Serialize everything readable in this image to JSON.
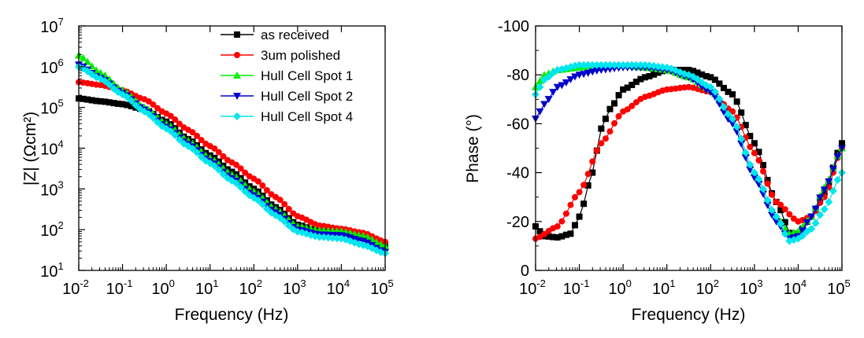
{
  "chart_data": [
    {
      "type": "scatter",
      "id": "impedance",
      "xlabel": "Frequency (Hz)",
      "ylabel": "|Z| (Ωcm²)",
      "xscale": "log",
      "yscale": "log",
      "xlim_exp": [
        -2,
        5
      ],
      "ylim_exp": [
        1,
        7
      ],
      "legend_position": "top-right",
      "series": [
        {
          "name": "as received",
          "color": "#000000",
          "marker": "square",
          "knots": [
            [
              -2,
              5.22
            ],
            [
              -1.5,
              5.15
            ],
            [
              -1,
              5.08
            ],
            [
              -0.5,
              4.95
            ],
            [
              0,
              4.65
            ],
            [
              0.5,
              4.22
            ],
            [
              1,
              3.82
            ],
            [
              1.5,
              3.42
            ],
            [
              2,
              3.0
            ],
            [
              2.5,
              2.55
            ],
            [
              3,
              2.12
            ],
            [
              3.5,
              1.95
            ],
            [
              4,
              1.93
            ],
            [
              4.5,
              1.85
            ],
            [
              5,
              1.62
            ]
          ]
        },
        {
          "name": "3um polished",
          "color": "#ff0000",
          "marker": "circle",
          "knots": [
            [
              -2,
              5.62
            ],
            [
              -1.5,
              5.55
            ],
            [
              -1,
              5.42
            ],
            [
              -0.5,
              5.2
            ],
            [
              0,
              4.85
            ],
            [
              0.5,
              4.45
            ],
            [
              1,
              4.05
            ],
            [
              1.5,
              3.65
            ],
            [
              2,
              3.25
            ],
            [
              2.5,
              2.8
            ],
            [
              3,
              2.33
            ],
            [
              3.5,
              2.1
            ],
            [
              4,
              2.02
            ],
            [
              4.5,
              1.92
            ],
            [
              5,
              1.7
            ]
          ]
        },
        {
          "name": "Hull Cell Spot 1",
          "color": "#00ee00",
          "marker": "triangle-up",
          "knots": [
            [
              -2,
              6.28
            ],
            [
              -1.5,
              5.85
            ],
            [
              -1,
              5.42
            ],
            [
              -0.5,
              5.0
            ],
            [
              0,
              4.6
            ],
            [
              0.5,
              4.18
            ],
            [
              1,
              3.76
            ],
            [
              1.5,
              3.35
            ],
            [
              2,
              2.94
            ],
            [
              2.5,
              2.5
            ],
            [
              3,
              2.08
            ],
            [
              3.5,
              1.98
            ],
            [
              4,
              1.96
            ],
            [
              4.5,
              1.85
            ],
            [
              5,
              1.6
            ]
          ]
        },
        {
          "name": "Hull Cell Spot 2",
          "color": "#0000cc",
          "marker": "triangle-down",
          "knots": [
            [
              -2,
              6.05
            ],
            [
              -1.5,
              5.72
            ],
            [
              -1,
              5.35
            ],
            [
              -0.5,
              4.94
            ],
            [
              0,
              4.52
            ],
            [
              0.5,
              4.1
            ],
            [
              1,
              3.68
            ],
            [
              1.5,
              3.26
            ],
            [
              2,
              2.84
            ],
            [
              2.5,
              2.42
            ],
            [
              3,
              2.0
            ],
            [
              3.5,
              1.88
            ],
            [
              4,
              1.86
            ],
            [
              4.5,
              1.72
            ],
            [
              5,
              1.45
            ]
          ]
        },
        {
          "name": "Hull Cell Spot 4",
          "color": "#00e5ee",
          "marker": "diamond",
          "knots": [
            [
              -2,
              6.0
            ],
            [
              -1.5,
              5.7
            ],
            [
              -1,
              5.32
            ],
            [
              -0.5,
              4.9
            ],
            [
              0,
              4.48
            ],
            [
              0.5,
              4.05
            ],
            [
              1,
              3.63
            ],
            [
              1.5,
              3.2
            ],
            [
              2,
              2.78
            ],
            [
              2.5,
              2.35
            ],
            [
              3,
              1.95
            ],
            [
              3.5,
              1.82
            ],
            [
              4,
              1.78
            ],
            [
              4.5,
              1.62
            ],
            [
              5,
              1.42
            ]
          ]
        }
      ]
    },
    {
      "type": "scatter",
      "id": "phase",
      "xlabel": "Frequency (Hz)",
      "ylabel": "Phase (°)",
      "xscale": "log",
      "xlim_exp": [
        -2,
        5
      ],
      "ylim": [
        0,
        -100
      ],
      "yticks": [
        "0",
        "-20",
        "-40",
        "-60",
        "-80",
        "-100"
      ],
      "series": [
        {
          "name": "as received",
          "color": "#000000",
          "marker": "square",
          "knots": [
            [
              -2,
              -18
            ],
            [
              -1.8,
              -14
            ],
            [
              -1.5,
              -13.5
            ],
            [
              -1.2,
              -15
            ],
            [
              -1,
              -22
            ],
            [
              -0.7,
              -40
            ],
            [
              -0.5,
              -58
            ],
            [
              -0.3,
              -66
            ],
            [
              0,
              -74
            ],
            [
              0.5,
              -79
            ],
            [
              1,
              -82
            ],
            [
              1.5,
              -82
            ],
            [
              2,
              -79
            ],
            [
              2.5,
              -72
            ],
            [
              3,
              -52
            ],
            [
              3.5,
              -28
            ],
            [
              3.85,
              -14
            ],
            [
              4,
              -15
            ],
            [
              4.3,
              -22
            ],
            [
              4.6,
              -32
            ],
            [
              5,
              -52
            ]
          ]
        },
        {
          "name": "3um polished",
          "color": "#ff0000",
          "marker": "circle",
          "knots": [
            [
              -2,
              -13
            ],
            [
              -1.5,
              -18
            ],
            [
              -1,
              -32
            ],
            [
              -0.5,
              -52
            ],
            [
              0,
              -65
            ],
            [
              0.5,
              -71
            ],
            [
              1,
              -74
            ],
            [
              1.5,
              -75
            ],
            [
              2,
              -73
            ],
            [
              2.5,
              -65
            ],
            [
              3,
              -48
            ],
            [
              3.5,
              -28
            ],
            [
              4,
              -20
            ],
            [
              4.3,
              -22
            ],
            [
              4.6,
              -30
            ],
            [
              5,
              -50
            ]
          ]
        },
        {
          "name": "Hull Cell Spot 1",
          "color": "#00ee00",
          "marker": "triangle-up",
          "knots": [
            [
              -2,
              -75
            ],
            [
              -1.8,
              -80
            ],
            [
              -1.5,
              -82
            ],
            [
              -1,
              -83
            ],
            [
              -0.5,
              -84
            ],
            [
              0,
              -84
            ],
            [
              0.5,
              -83
            ],
            [
              1,
              -82
            ],
            [
              1.5,
              -79
            ],
            [
              2,
              -74
            ],
            [
              2.5,
              -62
            ],
            [
              3,
              -40
            ],
            [
              3.5,
              -22
            ],
            [
              3.8,
              -15
            ],
            [
              4,
              -16
            ],
            [
              4.3,
              -22
            ],
            [
              4.6,
              -34
            ],
            [
              5,
              -50
            ]
          ]
        },
        {
          "name": "Hull Cell Spot 2",
          "color": "#0000cc",
          "marker": "triangle-down",
          "knots": [
            [
              -2,
              -62
            ],
            [
              -1.8,
              -68
            ],
            [
              -1.5,
              -75
            ],
            [
              -1,
              -80
            ],
            [
              -0.5,
              -82
            ],
            [
              0,
              -83
            ],
            [
              0.5,
              -83
            ],
            [
              1,
              -82
            ],
            [
              1.5,
              -79
            ],
            [
              2,
              -73
            ],
            [
              2.5,
              -60
            ],
            [
              3,
              -38
            ],
            [
              3.5,
              -20
            ],
            [
              3.8,
              -13
            ],
            [
              4,
              -14
            ],
            [
              4.3,
              -22
            ],
            [
              4.6,
              -33
            ],
            [
              5,
              -50
            ]
          ]
        },
        {
          "name": "Hull Cell Spot 4",
          "color": "#00e5ee",
          "marker": "diamond",
          "knots": [
            [
              -2,
              -72
            ],
            [
              -1.8,
              -78
            ],
            [
              -1.5,
              -82
            ],
            [
              -1,
              -84
            ],
            [
              -0.5,
              -84
            ],
            [
              0,
              -84
            ],
            [
              0.5,
              -84
            ],
            [
              1,
              -83
            ],
            [
              1.5,
              -80
            ],
            [
              2,
              -75
            ],
            [
              2.5,
              -62
            ],
            [
              3,
              -40
            ],
            [
              3.5,
              -22
            ],
            [
              3.8,
              -12
            ],
            [
              4,
              -13
            ],
            [
              4.3,
              -17
            ],
            [
              4.6,
              -25
            ],
            [
              5,
              -40
            ]
          ]
        }
      ]
    }
  ]
}
